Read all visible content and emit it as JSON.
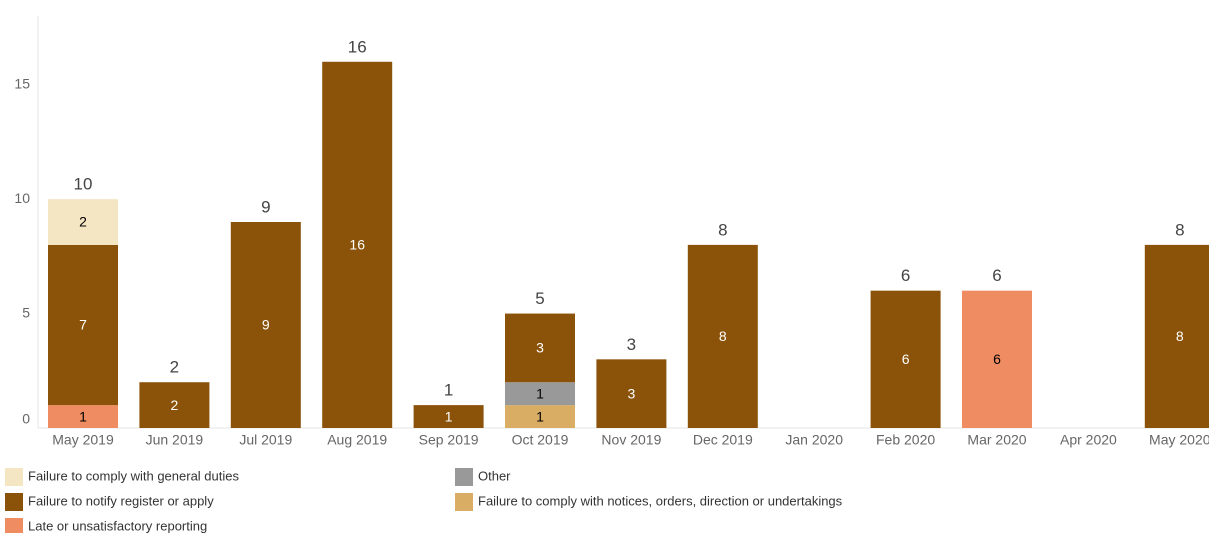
{
  "chart_data": {
    "type": "stacked-bar",
    "categories": [
      "May 2019",
      "Jun 2019",
      "Jul 2019",
      "Aug 2019",
      "Sep 2019",
      "Oct 2019",
      "Nov 2019",
      "Dec 2019",
      "Jan 2020",
      "Feb 2020",
      "Mar 2020",
      "Apr 2020",
      "May 2020"
    ],
    "series": [
      {
        "name": "Failure to comply with general duties",
        "color": "#f5e6c3",
        "values": [
          2,
          null,
          null,
          null,
          null,
          null,
          null,
          null,
          null,
          null,
          null,
          null,
          null
        ]
      },
      {
        "name": "Failure to notify register or apply",
        "color": "#8b5209",
        "values": [
          7,
          2,
          9,
          16,
          1,
          3,
          3,
          8,
          null,
          6,
          null,
          null,
          8
        ]
      },
      {
        "name": "Late or unsatisfactory reporting",
        "color": "#f08c62",
        "values": [
          1,
          null,
          null,
          null,
          null,
          null,
          null,
          null,
          null,
          null,
          6,
          null,
          null
        ]
      },
      {
        "name": "Other",
        "color": "#999999",
        "values": [
          null,
          null,
          null,
          null,
          null,
          1,
          null,
          null,
          null,
          null,
          null,
          null,
          null
        ]
      },
      {
        "name": "Failure to comply with notices, orders, direction or undertakings",
        "color": "#d9ad64",
        "values": [
          null,
          null,
          null,
          null,
          null,
          1,
          null,
          null,
          null,
          null,
          null,
          null,
          null
        ]
      }
    ],
    "totals": [
      10,
      2,
      9,
      16,
      1,
      5,
      3,
      8,
      null,
      6,
      6,
      null,
      8
    ],
    "ylim": [
      0,
      18
    ],
    "yticks": [
      0,
      5,
      10,
      15
    ],
    "grid": false,
    "legend": "bottom"
  }
}
